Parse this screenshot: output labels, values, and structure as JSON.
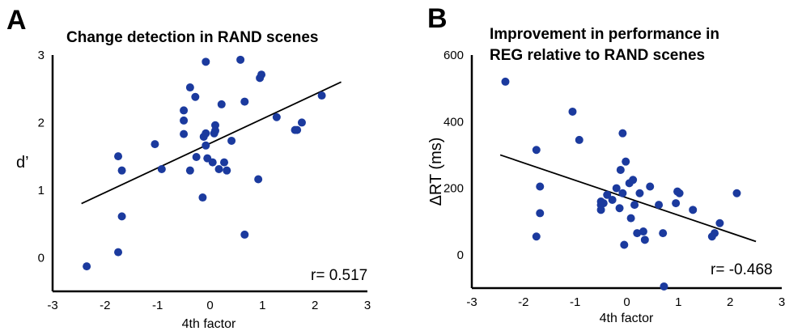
{
  "chart_data": [
    {
      "type": "scatter",
      "panel": "A",
      "title": "Change detection in RAND scenes",
      "xlabel": "4th factor",
      "ylabel": "d’",
      "xlim": [
        -3,
        3
      ],
      "ylim": [
        -0.5,
        3
      ],
      "xticks": [
        "-3",
        "-2",
        "-1",
        "0",
        "1",
        "2",
        "3"
      ],
      "yticks": [
        "0",
        "1",
        "2",
        "3"
      ],
      "annotation": "r= 0.517",
      "marker_color": "#1b3a9e",
      "fit_line": {
        "x": [
          -2.45,
          2.5
        ],
        "y": [
          0.8,
          2.6
        ]
      },
      "points": [
        [
          -2.35,
          -0.13
        ],
        [
          -1.75,
          1.5
        ],
        [
          -1.75,
          0.08
        ],
        [
          -1.68,
          0.61
        ],
        [
          -1.68,
          1.29
        ],
        [
          -1.05,
          1.68
        ],
        [
          -0.92,
          1.31
        ],
        [
          -0.5,
          2.03
        ],
        [
          -0.5,
          2.18
        ],
        [
          -0.5,
          1.83
        ],
        [
          -0.38,
          2.52
        ],
        [
          -0.38,
          1.29
        ],
        [
          -0.28,
          2.38
        ],
        [
          -0.26,
          1.49
        ],
        [
          -0.14,
          0.89
        ],
        [
          -0.12,
          1.79
        ],
        [
          -0.08,
          1.84
        ],
        [
          -0.08,
          2.9
        ],
        [
          -0.08,
          1.66
        ],
        [
          -0.05,
          1.47
        ],
        [
          0.05,
          1.41
        ],
        [
          0.08,
          1.84
        ],
        [
          0.1,
          1.96
        ],
        [
          0.1,
          1.88
        ],
        [
          0.17,
          1.31
        ],
        [
          0.22,
          2.27
        ],
        [
          0.27,
          1.41
        ],
        [
          0.32,
          1.29
        ],
        [
          0.41,
          1.73
        ],
        [
          0.58,
          2.93
        ],
        [
          0.66,
          0.34
        ],
        [
          0.66,
          2.31
        ],
        [
          0.92,
          1.16
        ],
        [
          0.95,
          2.66
        ],
        [
          0.98,
          2.71
        ],
        [
          1.27,
          2.08
        ],
        [
          1.62,
          1.89
        ],
        [
          1.66,
          1.89
        ],
        [
          1.75,
          2.0
        ],
        [
          2.13,
          2.4
        ]
      ]
    },
    {
      "type": "scatter",
      "panel": "B",
      "title": "Improvement in performance in REG relative to RAND scenes",
      "title_lines": [
        "Improvement in performance in",
        "REG relative to RAND scenes"
      ],
      "xlabel": "4th factor",
      "ylabel": "ΔRT (ms)",
      "xlim": [
        -3,
        3
      ],
      "ylim": [
        -100,
        600
      ],
      "xticks": [
        "-3",
        "-2",
        "-1",
        "0",
        "1",
        "2",
        "3"
      ],
      "yticks": [
        "0",
        "200",
        "400",
        "600"
      ],
      "annotation": "r= -0.468",
      "marker_color": "#1b3a9e",
      "fit_line": {
        "x": [
          -2.45,
          2.5
        ],
        "y": [
          300,
          40
        ]
      },
      "points": [
        [
          -2.35,
          520
        ],
        [
          -1.75,
          315
        ],
        [
          -1.75,
          55
        ],
        [
          -1.68,
          205
        ],
        [
          -1.68,
          125
        ],
        [
          -1.05,
          430
        ],
        [
          -0.92,
          345
        ],
        [
          -0.5,
          160
        ],
        [
          -0.5,
          150
        ],
        [
          -0.5,
          135
        ],
        [
          -0.38,
          180
        ],
        [
          -0.28,
          165
        ],
        [
          -0.2,
          200
        ],
        [
          -0.14,
          140
        ],
        [
          -0.12,
          255
        ],
        [
          -0.08,
          365
        ],
        [
          -0.08,
          185
        ],
        [
          -0.05,
          30
        ],
        [
          -0.02,
          280
        ],
        [
          0.05,
          215
        ],
        [
          0.08,
          110
        ],
        [
          0.12,
          225
        ],
        [
          0.15,
          150
        ],
        [
          0.2,
          65
        ],
        [
          0.25,
          185
        ],
        [
          0.32,
          70
        ],
        [
          0.35,
          45
        ],
        [
          0.45,
          205
        ],
        [
          0.62,
          150
        ],
        [
          0.7,
          65
        ],
        [
          0.72,
          -95
        ],
        [
          0.95,
          155
        ],
        [
          0.98,
          190
        ],
        [
          1.02,
          185
        ],
        [
          1.28,
          135
        ],
        [
          1.65,
          55
        ],
        [
          1.7,
          65
        ],
        [
          1.8,
          95
        ],
        [
          2.13,
          185
        ],
        [
          -0.45,
          155
        ]
      ]
    }
  ]
}
